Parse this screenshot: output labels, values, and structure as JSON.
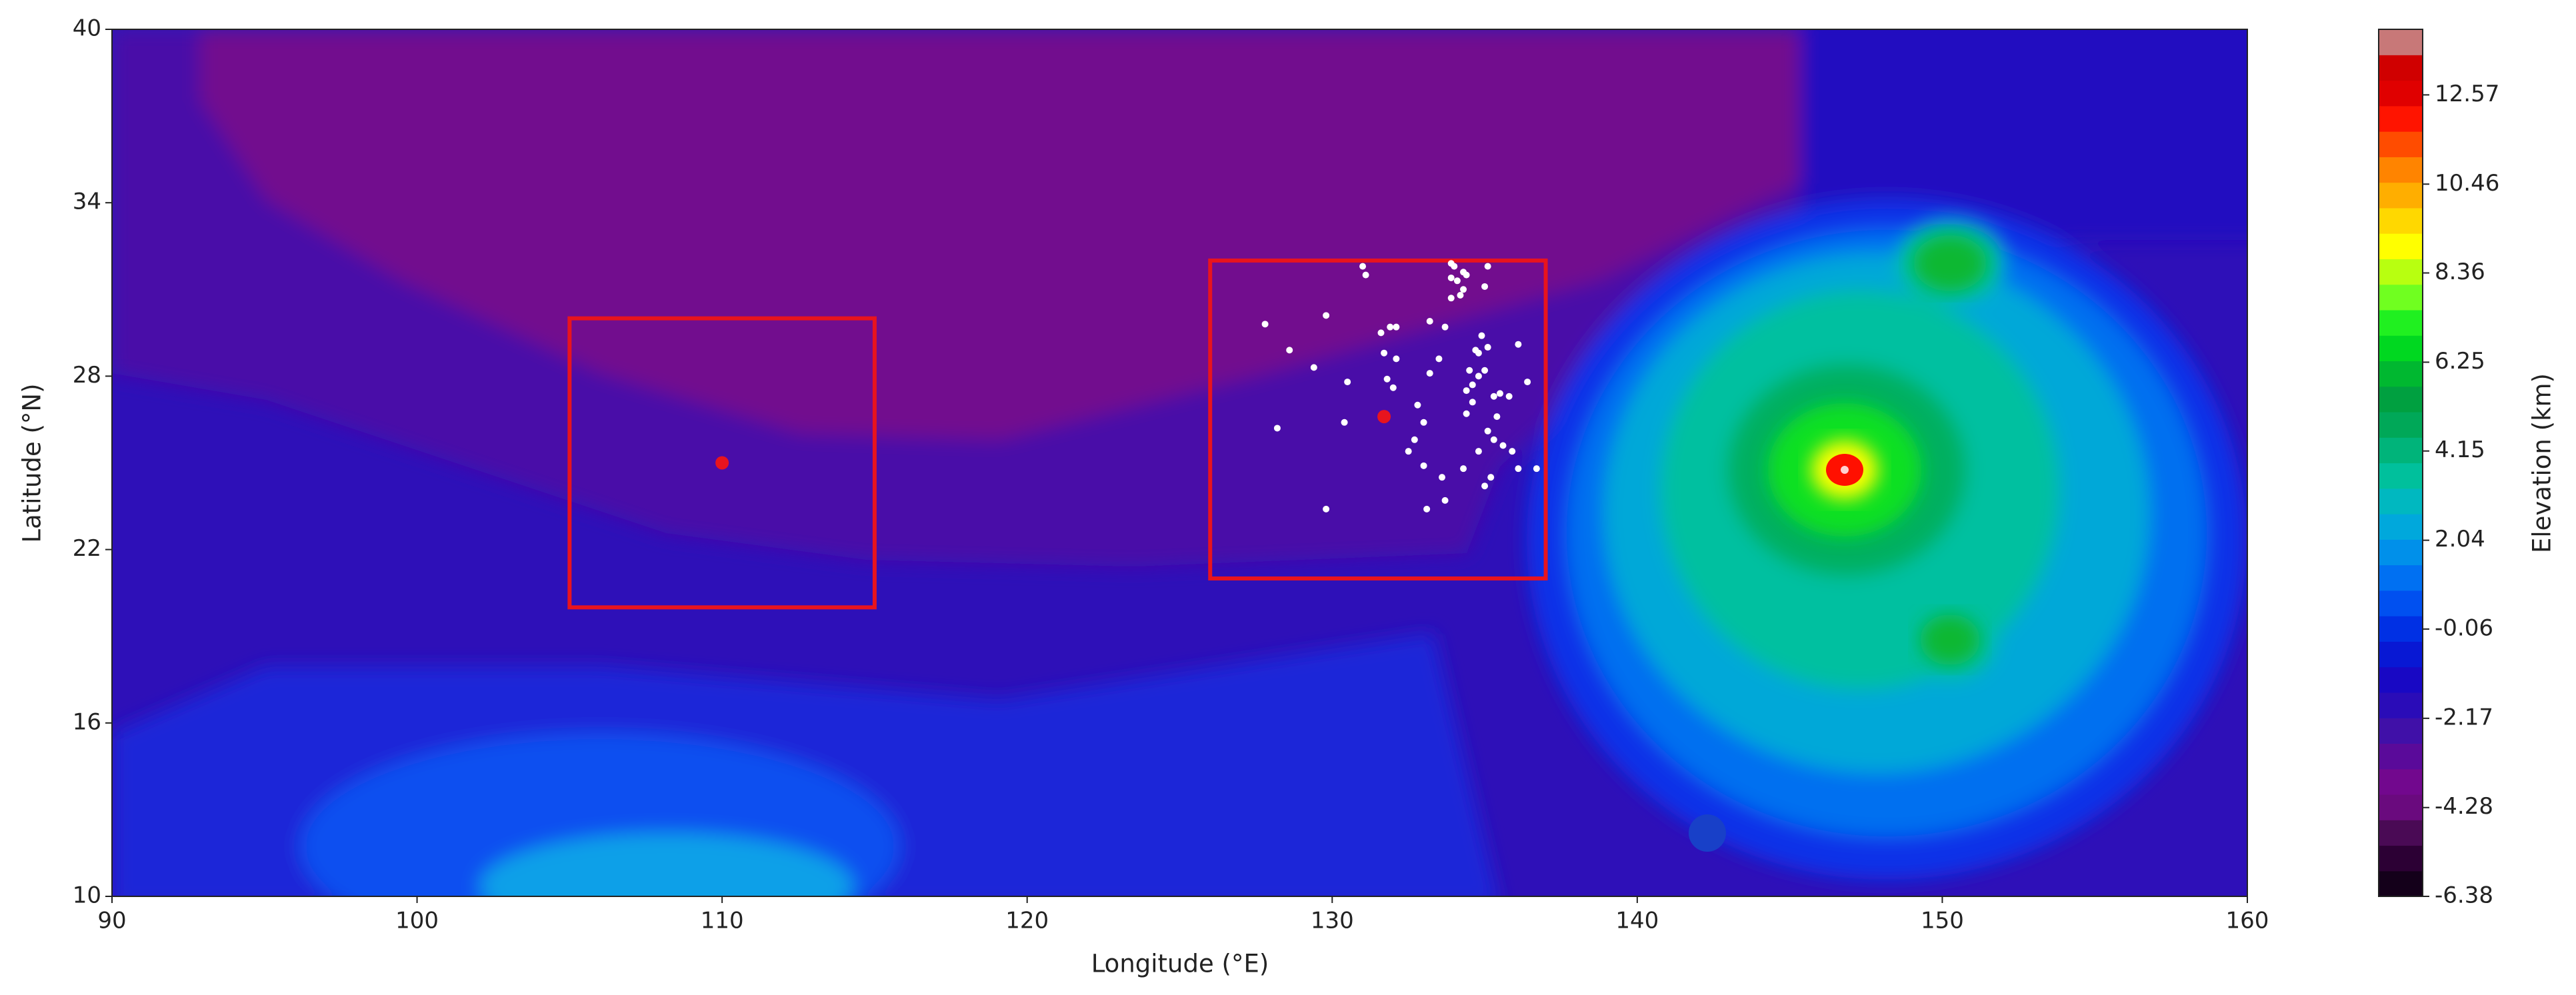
{
  "chart_data": {
    "type": "map",
    "xlabel": "Longitude (°E)",
    "ylabel": "Latitude (°N)",
    "xlim": [
      90,
      160
    ],
    "ylim": [
      10,
      40
    ],
    "xticks": [
      90,
      100,
      110,
      120,
      130,
      140,
      150,
      160
    ],
    "yticks": [
      10,
      16,
      22,
      28,
      34,
      40
    ],
    "boxes": [
      {
        "color": "#e8141e",
        "lon": [
          105,
          115
        ],
        "lat": [
          20,
          30
        ]
      },
      {
        "color": "#e8141e",
        "lon": [
          126,
          137
        ],
        "lat": [
          21,
          32
        ]
      }
    ],
    "centers": {
      "color": "#e8141e",
      "x": [
        110,
        131.7
      ],
      "y": [
        25,
        26.6
      ]
    },
    "points": {
      "color": "#ffffff",
      "x": [
        131.0,
        131.1,
        133.9,
        134.0,
        134.3,
        133.9,
        134.1,
        134.3,
        134.2,
        133.9,
        135.1,
        135.0,
        134.4,
        127.8,
        129.8,
        128.6,
        129.4,
        131.9,
        132.1,
        131.6,
        131.7,
        132.1,
        133.2,
        133.5,
        131.8,
        130.5,
        132.0,
        133.7,
        134.7,
        134.9,
        135.1,
        134.8,
        134.5,
        134.8,
        135.0,
        134.6,
        134.4,
        134.6,
        135.3,
        135.5,
        135.8,
        136.1,
        136.4,
        133.2,
        132.8,
        133.0,
        132.7,
        132.5,
        133.0,
        133.6,
        134.3,
        134.8,
        135.1,
        135.3,
        135.6,
        135.9,
        136.1,
        136.7,
        135.2,
        133.7,
        133.1,
        135.0,
        128.2,
        130.4,
        129.8,
        134.4,
        135.4
      ],
      "y": [
        31.8,
        31.5,
        31.9,
        31.8,
        31.6,
        31.4,
        31.3,
        31.0,
        30.8,
        30.7,
        31.8,
        31.1,
        31.5,
        29.8,
        30.1,
        28.9,
        28.3,
        29.7,
        29.7,
        29.5,
        28.8,
        28.6,
        29.9,
        28.6,
        27.9,
        27.8,
        27.6,
        29.7,
        28.9,
        29.4,
        29.0,
        28.8,
        28.2,
        28.0,
        28.2,
        27.7,
        27.5,
        27.1,
        27.3,
        27.4,
        27.3,
        29.1,
        27.8,
        28.1,
        27.0,
        26.4,
        25.8,
        25.4,
        24.9,
        24.5,
        24.8,
        25.4,
        26.1,
        25.8,
        25.6,
        25.4,
        24.8,
        24.8,
        24.5,
        23.7,
        23.4,
        24.2,
        26.2,
        26.4,
        23.4,
        26.7,
        26.6
      ]
    },
    "colorbar": {
      "label": "Elevation (km)",
      "lim": [
        -6.38,
        14.12
      ],
      "ticks": [
        -6.38,
        -4.28,
        -2.17,
        -0.06,
        2.04,
        4.15,
        6.25,
        8.36,
        10.46,
        12.57
      ],
      "colors": [
        "#14001a",
        "#2c0034",
        "#4a0a55",
        "#6a0a7e",
        "#72088e",
        "#5a0a9a",
        "#4010a8",
        "#2a0cb8",
        "#1808c4",
        "#0818d4",
        "#0030e4",
        "#0050f0",
        "#0070f2",
        "#0090ea",
        "#00a8dc",
        "#00b8c0",
        "#00c09c",
        "#00b47a",
        "#00a858",
        "#00a040",
        "#00b830",
        "#00d820",
        "#20f020",
        "#70ff20",
        "#b8ff10",
        "#ffff00",
        "#ffd800",
        "#ffae00",
        "#ff8400",
        "#ff4c00",
        "#ff1400",
        "#e00000",
        "#d00000",
        "#c87878"
      ]
    }
  }
}
